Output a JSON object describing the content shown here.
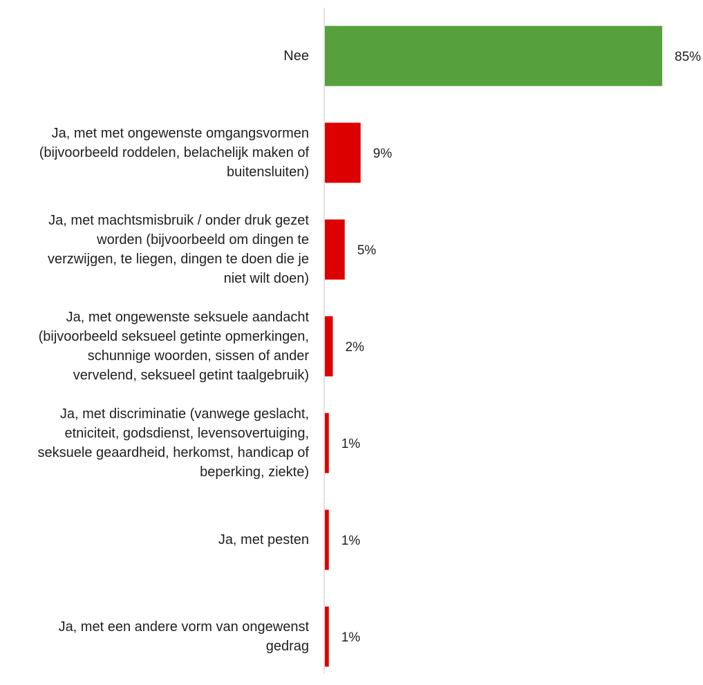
{
  "chart_data": {
    "type": "bar",
    "orientation": "horizontal",
    "categories": [
      [
        "Nee"
      ],
      [
        "Ja, met met ongewenste omgangsvormen",
        "(bijvoorbeeld roddelen, belachelijk maken of",
        "buitensluiten)"
      ],
      [
        "Ja, met machtsmisbruik / onder druk gezet",
        "worden (bijvoorbeeld om dingen te",
        "verzwijgen, te liegen, dingen te doen die je",
        "niet wilt doen)"
      ],
      [
        "Ja, met ongewenste seksuele aandacht",
        "(bijvoorbeeld seksueel getinte opmerkingen,",
        "schunnige woorden, sissen of ander",
        "vervelend, seksueel getint taalgebruik)"
      ],
      [
        "Ja, met discriminatie (vanwege geslacht,",
        "etniciteit, godsdienst, levensovertuiging,",
        "seksuele geaardheid, herkomst, handicap of",
        "beperking, ziekte)"
      ],
      [
        "Ja, met pesten"
      ],
      [
        "Ja, met een andere vorm van ongewenst",
        "gedrag"
      ]
    ],
    "values": [
      85,
      9,
      5,
      2,
      1,
      1,
      1
    ],
    "data_labels": [
      "85%",
      "9%",
      "5%",
      "2%",
      "1%",
      "1%",
      "1%"
    ],
    "bar_colors": [
      "#56a03e",
      "#dd0000",
      "#dd0000",
      "#dd0000",
      "#dd0000",
      "#dd0000",
      "#dd0000"
    ],
    "xlim": [
      0,
      100
    ],
    "grid": false,
    "legend": "none",
    "title": "",
    "xlabel": "",
    "ylabel": ""
  }
}
